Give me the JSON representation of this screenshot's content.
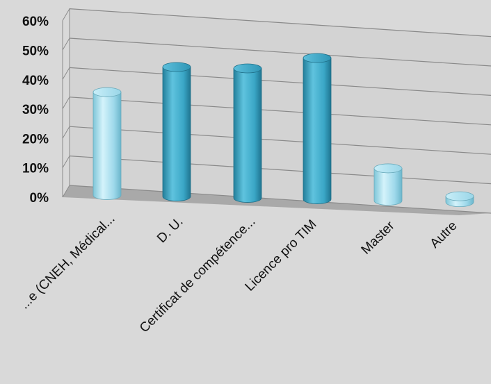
{
  "chart_data": {
    "type": "bar",
    "style": "3d-cylinder",
    "categories": [
      "...e (CNEH, Médical...",
      "D. U.",
      "Certificat de compétence...",
      "Licence pro TIM",
      "Master",
      "Autre"
    ],
    "values": [
      35,
      44,
      44,
      48,
      11,
      2
    ],
    "yticks": [
      "0%",
      "10%",
      "20%",
      "30%",
      "40%",
      "50%",
      "60%"
    ],
    "ylim": [
      0,
      60
    ],
    "grid": true,
    "legend": "none",
    "colors": {
      "light_bar": "#a6e0ef",
      "dark_bar": "#38a9c9",
      "background": "#d9d9d9",
      "floor": "#a8a8a8"
    },
    "bar_shades": [
      "light",
      "dark",
      "dark",
      "dark",
      "light",
      "light"
    ]
  }
}
